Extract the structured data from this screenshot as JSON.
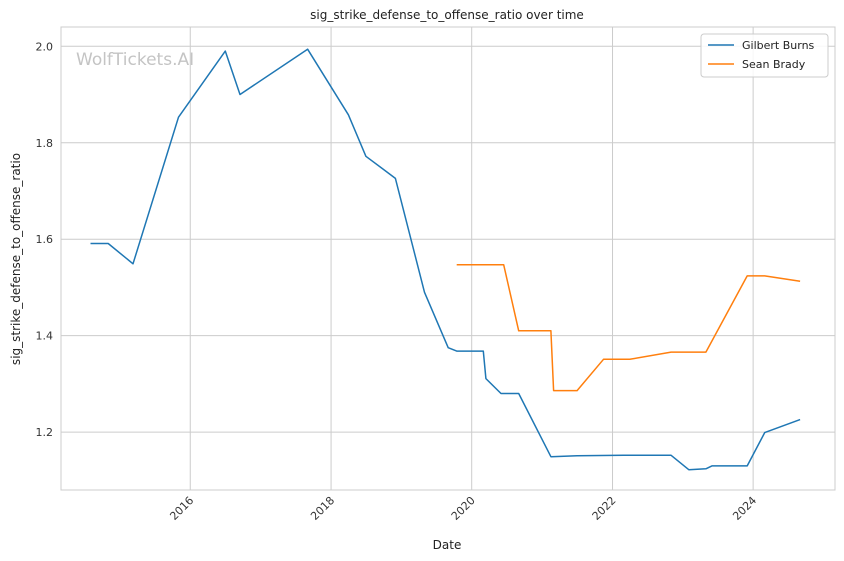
{
  "chart_data": {
    "type": "line",
    "title": "sig_strike_defense_to_offense_ratio over time",
    "xlabel": "Date",
    "ylabel": "sig_strike_defense_to_offense_ratio",
    "watermark": "WolfTickets.AI",
    "x_type": "date",
    "xlim": [
      "2014-03-01",
      "2025-03-01"
    ],
    "ylim": [
      1.08,
      2.04
    ],
    "x_ticks": [
      {
        "date": "2016-01-01",
        "label": "2016"
      },
      {
        "date": "2018-01-01",
        "label": "2018"
      },
      {
        "date": "2020-01-01",
        "label": "2020"
      },
      {
        "date": "2022-01-01",
        "label": "2022"
      },
      {
        "date": "2024-01-01",
        "label": "2024"
      }
    ],
    "y_ticks": [
      {
        "value": 1.2,
        "label": "1.2"
      },
      {
        "value": 1.4,
        "label": "1.4"
      },
      {
        "value": 1.6,
        "label": "1.6"
      },
      {
        "value": 1.8,
        "label": "1.8"
      },
      {
        "value": 2.0,
        "label": "2.0"
      }
    ],
    "grid": true,
    "legend_position": "top-right",
    "series": [
      {
        "name": "Gilbert Burns",
        "color": "#1f77b4",
        "points": [
          [
            "2014-08-01",
            1.591
          ],
          [
            "2014-11-01",
            1.591
          ],
          [
            "2015-03-10",
            1.549
          ],
          [
            "2015-11-01",
            1.853
          ],
          [
            "2016-07-01",
            1.99
          ],
          [
            "2016-09-15",
            1.9
          ],
          [
            "2017-09-01",
            1.994
          ],
          [
            "2018-04-01",
            1.858
          ],
          [
            "2018-07-01",
            1.772
          ],
          [
            "2018-12-01",
            1.726
          ],
          [
            "2019-05-01",
            1.49
          ],
          [
            "2019-09-01",
            1.375
          ],
          [
            "2019-10-15",
            1.368
          ],
          [
            "2020-03-01",
            1.368
          ],
          [
            "2020-03-15",
            1.311
          ],
          [
            "2020-06-01",
            1.28
          ],
          [
            "2020-09-01",
            1.28
          ],
          [
            "2021-02-15",
            1.149
          ],
          [
            "2021-07-01",
            1.151
          ],
          [
            "2022-03-01",
            1.152
          ],
          [
            "2022-11-01",
            1.152
          ],
          [
            "2023-02-01",
            1.122
          ],
          [
            "2023-05-01",
            1.124
          ],
          [
            "2023-06-01",
            1.13
          ],
          [
            "2023-12-01",
            1.13
          ],
          [
            "2024-03-01",
            1.199
          ],
          [
            "2024-09-01",
            1.226
          ]
        ]
      },
      {
        "name": "Sean Brady",
        "color": "#ff7f0e",
        "points": [
          [
            "2019-10-15",
            1.547
          ],
          [
            "2020-06-15",
            1.547
          ],
          [
            "2020-09-01",
            1.41
          ],
          [
            "2021-02-15",
            1.41
          ],
          [
            "2021-03-01",
            1.286
          ],
          [
            "2021-07-01",
            1.286
          ],
          [
            "2021-11-15",
            1.351
          ],
          [
            "2022-04-01",
            1.351
          ],
          [
            "2022-11-01",
            1.366
          ],
          [
            "2023-05-01",
            1.366
          ],
          [
            "2023-12-01",
            1.524
          ],
          [
            "2024-03-01",
            1.524
          ],
          [
            "2024-09-01",
            1.513
          ]
        ]
      }
    ]
  }
}
